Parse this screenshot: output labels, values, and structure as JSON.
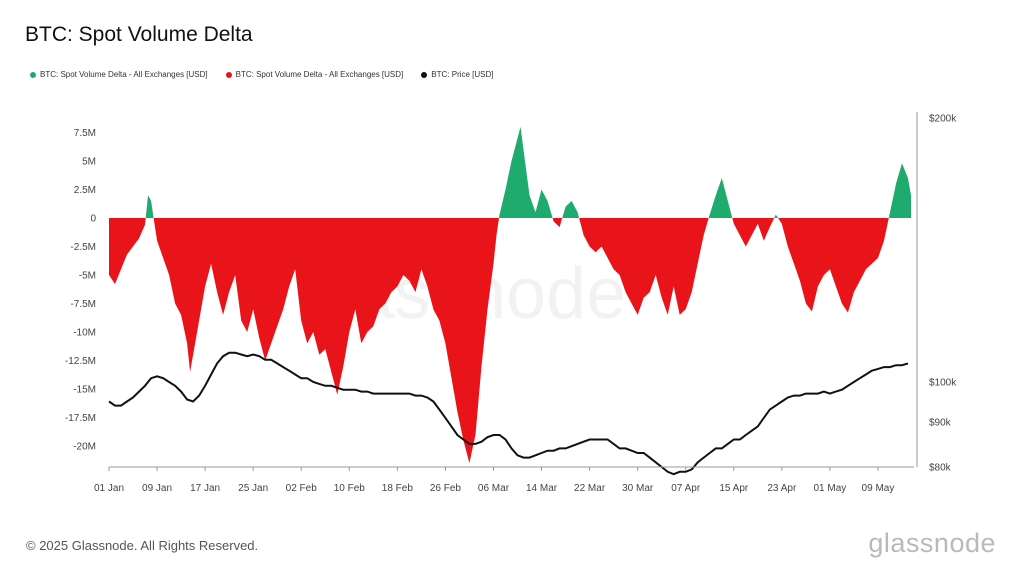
{
  "title": "BTC: Spot Volume Delta",
  "legend": [
    {
      "label": "BTC: Spot Volume Delta - All Exchanges [USD]",
      "color": "#1fab6e"
    },
    {
      "label": "BTC: Spot Volume Delta - All Exchanges [USD]",
      "color": "#e8141a"
    },
    {
      "label": "BTC: Price [USD]",
      "color": "#111111"
    }
  ],
  "footer": "© 2025 Glassnode. All Rights Reserved.",
  "logo": "glassnode",
  "watermark": "glassnode",
  "chart_data": {
    "type": "area",
    "x_tick_labels": [
      "01 Jan",
      "09 Jan",
      "17 Jan",
      "25 Jan",
      "02 Feb",
      "10 Feb",
      "18 Feb",
      "26 Feb",
      "06 Mar",
      "14 Mar",
      "22 Mar",
      "30 Mar",
      "07 Apr",
      "15 Apr",
      "23 Apr",
      "01 May",
      "09 May"
    ],
    "x_range_days": [
      0,
      134
    ],
    "y_left": {
      "ticks": [
        7.5,
        5,
        2.5,
        0,
        -2.5,
        -5,
        -7.5,
        -10,
        -12.5,
        -15,
        -17.5,
        -20
      ],
      "tick_labels": [
        "7.5M",
        "5M",
        "2.5M",
        "0",
        "-2.5M",
        "-5M",
        "-7.5M",
        "-10M",
        "-12.5M",
        "-15M",
        "-17.5M",
        "-20M"
      ],
      "range": [
        -21.5,
        8.0
      ],
      "unit": "M USD"
    },
    "y_right": {
      "ticks": [
        200,
        100,
        90,
        80
      ],
      "tick_labels": [
        "$200k",
        "$100k",
        "$90k",
        "$80k"
      ],
      "scale": "log",
      "range": [
        80,
        200
      ],
      "unit": "k USD"
    },
    "series": [
      {
        "name": "BTC: Spot Volume Delta - All Exchanges [USD]",
        "positive_color": "#1fab6e",
        "negative_color": "#e8141a",
        "points": [
          [
            0,
            -5
          ],
          [
            1,
            -5.8
          ],
          [
            2,
            -4.5
          ],
          [
            3,
            -3.2
          ],
          [
            4,
            -2.5
          ],
          [
            5,
            -1.8
          ],
          [
            6,
            -0.6
          ],
          [
            6.5,
            2.0
          ],
          [
            7,
            1.5
          ],
          [
            7.5,
            -0.3
          ],
          [
            8,
            -2.0
          ],
          [
            9,
            -3.5
          ],
          [
            10,
            -5
          ],
          [
            11,
            -7.5
          ],
          [
            12,
            -8.5
          ],
          [
            13,
            -11
          ],
          [
            13.5,
            -13.5
          ],
          [
            14,
            -12
          ],
          [
            15,
            -9
          ],
          [
            16,
            -6
          ],
          [
            17,
            -4
          ],
          [
            18,
            -6.5
          ],
          [
            19,
            -8.5
          ],
          [
            20,
            -6.5
          ],
          [
            21,
            -5
          ],
          [
            22,
            -9
          ],
          [
            23,
            -10
          ],
          [
            24,
            -8
          ],
          [
            25,
            -10.5
          ],
          [
            26,
            -12.5
          ],
          [
            27,
            -11
          ],
          [
            28,
            -9.5
          ],
          [
            29,
            -8
          ],
          [
            30,
            -6
          ],
          [
            31,
            -4.5
          ],
          [
            32,
            -9
          ],
          [
            33,
            -11
          ],
          [
            34,
            -10
          ],
          [
            35,
            -12
          ],
          [
            36,
            -11.5
          ],
          [
            37,
            -13.5
          ],
          [
            38,
            -15.5
          ],
          [
            39,
            -13
          ],
          [
            40,
            -10
          ],
          [
            41,
            -8
          ],
          [
            42,
            -11
          ],
          [
            43,
            -10
          ],
          [
            44,
            -9.5
          ],
          [
            45,
            -8
          ],
          [
            46,
            -7.5
          ],
          [
            47,
            -6.5
          ],
          [
            48,
            -6
          ],
          [
            49,
            -5
          ],
          [
            50,
            -5.5
          ],
          [
            51,
            -6.5
          ],
          [
            52,
            -4.5
          ],
          [
            53,
            -6
          ],
          [
            54,
            -8
          ],
          [
            55,
            -9
          ],
          [
            56,
            -11
          ],
          [
            57,
            -14
          ],
          [
            58,
            -17
          ],
          [
            59,
            -19.5
          ],
          [
            60,
            -21.5
          ],
          [
            61,
            -19
          ],
          [
            62,
            -13
          ],
          [
            63,
            -8
          ],
          [
            64,
            -4
          ],
          [
            64.5,
            -1.5
          ],
          [
            65,
            0.3
          ],
          [
            66,
            2.5
          ],
          [
            67,
            5
          ],
          [
            68,
            7
          ],
          [
            68.5,
            8.0
          ],
          [
            69,
            6
          ],
          [
            70,
            2
          ],
          [
            71,
            0.5
          ],
          [
            72,
            2.5
          ],
          [
            73,
            1.5
          ],
          [
            74,
            -0.3
          ],
          [
            75,
            -0.8
          ],
          [
            76,
            1.0
          ],
          [
            77,
            1.5
          ],
          [
            78,
            0.5
          ],
          [
            79,
            -1.5
          ],
          [
            80,
            -2.5
          ],
          [
            81,
            -3
          ],
          [
            82,
            -2.5
          ],
          [
            83,
            -3.5
          ],
          [
            84,
            -4.5
          ],
          [
            85,
            -5
          ],
          [
            86,
            -6.5
          ],
          [
            87,
            -7.5
          ],
          [
            88,
            -8.5
          ],
          [
            89,
            -7
          ],
          [
            90,
            -6.5
          ],
          [
            91,
            -5
          ],
          [
            92,
            -7
          ],
          [
            93,
            -8.5
          ],
          [
            94,
            -6
          ],
          [
            95,
            -8.5
          ],
          [
            96,
            -8
          ],
          [
            97,
            -6.5
          ],
          [
            98,
            -4
          ],
          [
            99,
            -1.5
          ],
          [
            100,
            0.3
          ],
          [
            101,
            2
          ],
          [
            102,
            3.5
          ],
          [
            103,
            1.5
          ],
          [
            104,
            -0.5
          ],
          [
            105,
            -1.5
          ],
          [
            106,
            -2.5
          ],
          [
            107,
            -1.5
          ],
          [
            108,
            -0.5
          ],
          [
            109,
            -2
          ],
          [
            110,
            -0.8
          ],
          [
            111,
            0.3
          ],
          [
            112,
            -0.5
          ],
          [
            113,
            -2.5
          ],
          [
            114,
            -4
          ],
          [
            115,
            -5.5
          ],
          [
            116,
            -7.5
          ],
          [
            117,
            -8.2
          ],
          [
            118,
            -6
          ],
          [
            119,
            -5
          ],
          [
            120,
            -4.5
          ],
          [
            121,
            -6
          ],
          [
            122,
            -7.5
          ],
          [
            123,
            -8.3
          ],
          [
            124,
            -6.5
          ],
          [
            125,
            -5.5
          ],
          [
            126,
            -4.5
          ],
          [
            127,
            -4
          ],
          [
            128,
            -3.5
          ],
          [
            129,
            -2
          ],
          [
            130,
            0.5
          ],
          [
            131,
            3
          ],
          [
            132,
            4.8
          ],
          [
            133,
            3.5
          ],
          [
            133.5,
            2.0
          ]
        ]
      },
      {
        "name": "BTC: Price [USD]",
        "color": "#111111",
        "points": [
          [
            0,
            95
          ],
          [
            1,
            94
          ],
          [
            2,
            94
          ],
          [
            3,
            95
          ],
          [
            4,
            96
          ],
          [
            5,
            97.5
          ],
          [
            6,
            99
          ],
          [
            7,
            101
          ],
          [
            8,
            101.5
          ],
          [
            9,
            101
          ],
          [
            10,
            100
          ],
          [
            11,
            99
          ],
          [
            12,
            97.5
          ],
          [
            13,
            95.5
          ],
          [
            14,
            95
          ],
          [
            15,
            96.5
          ],
          [
            16,
            99
          ],
          [
            17,
            102
          ],
          [
            18,
            105
          ],
          [
            19,
            107
          ],
          [
            20,
            108
          ],
          [
            21,
            108
          ],
          [
            22,
            107.5
          ],
          [
            23,
            107
          ],
          [
            24,
            107.5
          ],
          [
            25,
            107
          ],
          [
            26,
            106
          ],
          [
            27,
            106
          ],
          [
            28,
            105
          ],
          [
            29,
            104
          ],
          [
            30,
            103
          ],
          [
            31,
            102
          ],
          [
            32,
            101
          ],
          [
            33,
            101
          ],
          [
            34,
            100
          ],
          [
            35,
            99.5
          ],
          [
            36,
            99
          ],
          [
            37,
            99
          ],
          [
            38,
            98.5
          ],
          [
            39,
            98
          ],
          [
            40,
            98
          ],
          [
            41,
            98
          ],
          [
            42,
            97.5
          ],
          [
            43,
            97.5
          ],
          [
            44,
            97
          ],
          [
            45,
            97
          ],
          [
            46,
            97
          ],
          [
            47,
            97
          ],
          [
            48,
            97
          ],
          [
            49,
            97
          ],
          [
            50,
            97
          ],
          [
            51,
            96.5
          ],
          [
            52,
            96.5
          ],
          [
            53,
            96
          ],
          [
            54,
            95
          ],
          [
            55,
            93
          ],
          [
            56,
            91
          ],
          [
            57,
            89
          ],
          [
            58,
            87
          ],
          [
            59,
            86
          ],
          [
            60,
            85
          ],
          [
            61,
            85
          ],
          [
            62,
            85.5
          ],
          [
            63,
            86.5
          ],
          [
            64,
            87
          ],
          [
            65,
            87
          ],
          [
            66,
            86
          ],
          [
            67,
            84
          ],
          [
            68,
            82.5
          ],
          [
            69,
            82
          ],
          [
            70,
            82
          ],
          [
            71,
            82.5
          ],
          [
            72,
            83
          ],
          [
            73,
            83.5
          ],
          [
            74,
            83.5
          ],
          [
            75,
            84
          ],
          [
            76,
            84
          ],
          [
            77,
            84.5
          ],
          [
            78,
            85
          ],
          [
            79,
            85.5
          ],
          [
            80,
            86
          ],
          [
            81,
            86
          ],
          [
            82,
            86
          ],
          [
            83,
            86
          ],
          [
            84,
            85
          ],
          [
            85,
            84
          ],
          [
            86,
            84
          ],
          [
            87,
            83.5
          ],
          [
            88,
            83
          ],
          [
            89,
            83
          ],
          [
            90,
            82
          ],
          [
            91,
            81
          ],
          [
            92,
            80
          ],
          [
            93,
            79
          ],
          [
            94,
            78.5
          ],
          [
            95,
            79
          ],
          [
            96,
            79
          ],
          [
            97,
            79.5
          ],
          [
            98,
            81
          ],
          [
            99,
            82
          ],
          [
            100,
            83
          ],
          [
            101,
            84
          ],
          [
            102,
            84
          ],
          [
            103,
            85
          ],
          [
            104,
            86
          ],
          [
            105,
            86
          ],
          [
            106,
            87
          ],
          [
            107,
            88
          ],
          [
            108,
            89
          ],
          [
            109,
            91
          ],
          [
            110,
            93
          ],
          [
            111,
            94
          ],
          [
            112,
            95
          ],
          [
            113,
            96
          ],
          [
            114,
            96.5
          ],
          [
            115,
            96.5
          ],
          [
            116,
            97
          ],
          [
            117,
            97
          ],
          [
            118,
            97
          ],
          [
            119,
            97.5
          ],
          [
            120,
            97
          ],
          [
            121,
            97.5
          ],
          [
            122,
            98
          ],
          [
            123,
            99
          ],
          [
            124,
            100
          ],
          [
            125,
            101
          ],
          [
            126,
            102
          ],
          [
            127,
            103
          ],
          [
            128,
            103.5
          ],
          [
            129,
            104
          ],
          [
            130,
            104
          ],
          [
            131,
            104.5
          ],
          [
            132,
            104.5
          ],
          [
            133,
            105
          ]
        ]
      }
    ]
  }
}
